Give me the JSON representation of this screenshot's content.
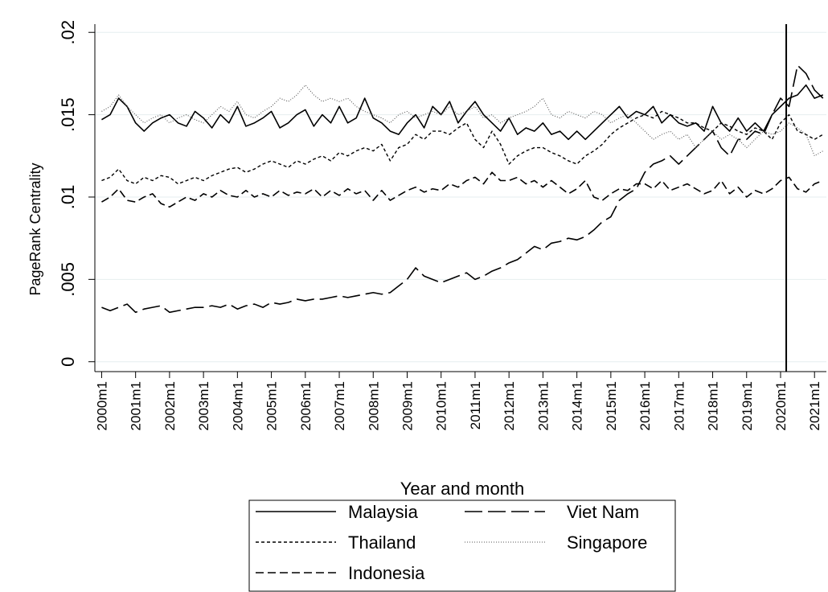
{
  "chart_data": {
    "type": "line",
    "y_label": "PageRank Centrality",
    "x_label": "Year and month",
    "ylim": [
      -0.0006,
      0.0205
    ],
    "yticks": [
      0,
      {
        "value": 0.005,
        "label": ".005"
      },
      {
        "value": 0.01,
        "label": ".01"
      },
      {
        "value": 0.015,
        "label": ".015"
      },
      {
        "value": 0.02,
        "label": ".02"
      }
    ],
    "xlim": [
      1999.8,
      2021.35
    ],
    "xticks": [
      {
        "value": 2000,
        "label": "2000m1"
      },
      {
        "value": 2001,
        "label": "2001m1"
      },
      {
        "value": 2002,
        "label": "2002m1"
      },
      {
        "value": 2003,
        "label": "2003m1"
      },
      {
        "value": 2004,
        "label": "2004m1"
      },
      {
        "value": 2005,
        "label": "2005m1"
      },
      {
        "value": 2006,
        "label": "2006m1"
      },
      {
        "value": 2007,
        "label": "2007m1"
      },
      {
        "value": 2008,
        "label": "2008m1"
      },
      {
        "value": 2009,
        "label": "2009m1"
      },
      {
        "value": 2010,
        "label": "2010m1"
      },
      {
        "value": 2011,
        "label": "2011m1"
      },
      {
        "value": 2012,
        "label": "2012m1"
      },
      {
        "value": 2013,
        "label": "2013m1"
      },
      {
        "value": 2014,
        "label": "2014m1"
      },
      {
        "value": 2015,
        "label": "2015m1"
      },
      {
        "value": 2016,
        "label": "2016m1"
      },
      {
        "value": 2017,
        "label": "2017m1"
      },
      {
        "value": 2018,
        "label": "2018m1"
      },
      {
        "value": 2019,
        "label": "2019m1"
      },
      {
        "value": 2020,
        "label": "2020m1"
      },
      {
        "value": 2021,
        "label": "2021m1"
      }
    ],
    "grid": true,
    "xline": 2020.167,
    "x": [
      2000,
      2000.25,
      2000.5,
      2000.75,
      2001,
      2001.25,
      2001.5,
      2001.75,
      2002,
      2002.25,
      2002.5,
      2002.75,
      2003,
      2003.25,
      2003.5,
      2003.75,
      2004,
      2004.25,
      2004.5,
      2004.75,
      2005,
      2005.25,
      2005.5,
      2005.75,
      2006,
      2006.25,
      2006.5,
      2006.75,
      2007,
      2007.25,
      2007.5,
      2007.75,
      2008,
      2008.25,
      2008.5,
      2008.75,
      2009,
      2009.25,
      2009.5,
      2009.75,
      2010,
      2010.25,
      2010.5,
      2010.75,
      2011,
      2011.25,
      2011.5,
      2011.75,
      2012,
      2012.25,
      2012.5,
      2012.75,
      2013,
      2013.25,
      2013.5,
      2013.75,
      2014,
      2014.25,
      2014.5,
      2014.75,
      2015,
      2015.25,
      2015.5,
      2015.75,
      2016,
      2016.25,
      2016.5,
      2016.75,
      2017,
      2017.25,
      2017.5,
      2017.75,
      2018,
      2018.25,
      2018.5,
      2018.75,
      2019,
      2019.25,
      2019.5,
      2019.75,
      2020,
      2020.25,
      2020.5,
      2020.75,
      2021,
      2021.25
    ],
    "series": [
      {
        "name": "Malaysia",
        "color": "#000000",
        "dash": "solid",
        "values": [
          0.0147,
          0.015,
          0.016,
          0.0155,
          0.0145,
          0.014,
          0.0145,
          0.0148,
          0.015,
          0.0145,
          0.0143,
          0.0152,
          0.0148,
          0.0142,
          0.015,
          0.0145,
          0.0155,
          0.0143,
          0.0145,
          0.0148,
          0.0152,
          0.0142,
          0.0145,
          0.015,
          0.0153,
          0.0143,
          0.015,
          0.0145,
          0.0155,
          0.0145,
          0.0148,
          0.016,
          0.0148,
          0.0145,
          0.014,
          0.0138,
          0.0145,
          0.015,
          0.0142,
          0.0155,
          0.015,
          0.0158,
          0.0145,
          0.0152,
          0.0158,
          0.015,
          0.0145,
          0.014,
          0.0148,
          0.0138,
          0.0142,
          0.014,
          0.0145,
          0.0138,
          0.014,
          0.0135,
          0.014,
          0.0135,
          0.014,
          0.0145,
          0.015,
          0.0155,
          0.0148,
          0.0152,
          0.015,
          0.0155,
          0.0145,
          0.015,
          0.0145,
          0.0143,
          0.0145,
          0.014,
          0.0155,
          0.0145,
          0.014,
          0.0148,
          0.014,
          0.0145,
          0.014,
          0.015,
          0.0155,
          0.016,
          0.0162,
          0.0168,
          0.016,
          0.0162
        ]
      },
      {
        "name": "Viet Nam",
        "color": "#000000",
        "dash": "long",
        "values": [
          0.0033,
          0.0031,
          0.0033,
          0.0035,
          0.003,
          0.0032,
          0.0033,
          0.0034,
          0.003,
          0.0031,
          0.0032,
          0.0033,
          0.0033,
          0.0034,
          0.0033,
          0.0035,
          0.0032,
          0.0034,
          0.0035,
          0.0033,
          0.0036,
          0.0035,
          0.0036,
          0.0038,
          0.0037,
          0.0038,
          0.0038,
          0.0039,
          0.004,
          0.0039,
          0.004,
          0.0041,
          0.0042,
          0.0041,
          0.0042,
          0.0046,
          0.005,
          0.0057,
          0.0052,
          0.005,
          0.0048,
          0.005,
          0.0052,
          0.0054,
          0.005,
          0.0052,
          0.0055,
          0.0057,
          0.006,
          0.0062,
          0.0066,
          0.007,
          0.0068,
          0.0072,
          0.0073,
          0.0075,
          0.0074,
          0.0076,
          0.008,
          0.0085,
          0.0088,
          0.0098,
          0.0102,
          0.0105,
          0.0115,
          0.012,
          0.0122,
          0.0125,
          0.012,
          0.0125,
          0.013,
          0.0135,
          0.014,
          0.013,
          0.0125,
          0.0135,
          0.0135,
          0.014,
          0.0138,
          0.015,
          0.016,
          0.0155,
          0.018,
          0.0175,
          0.0165,
          0.016
        ]
      },
      {
        "name": "Thailand",
        "color": "#000000",
        "dash": "short",
        "values": [
          0.011,
          0.0112,
          0.0117,
          0.011,
          0.0108,
          0.0112,
          0.011,
          0.0113,
          0.0112,
          0.0108,
          0.011,
          0.0112,
          0.011,
          0.0113,
          0.0115,
          0.0117,
          0.0118,
          0.0115,
          0.0117,
          0.012,
          0.0122,
          0.012,
          0.0118,
          0.0122,
          0.012,
          0.0123,
          0.0125,
          0.0122,
          0.0127,
          0.0125,
          0.0128,
          0.013,
          0.0128,
          0.0132,
          0.0122,
          0.013,
          0.0132,
          0.0138,
          0.0135,
          0.014,
          0.014,
          0.0138,
          0.0142,
          0.0145,
          0.0135,
          0.013,
          0.014,
          0.0132,
          0.012,
          0.0125,
          0.0128,
          0.013,
          0.013,
          0.0127,
          0.0125,
          0.0122,
          0.012,
          0.0125,
          0.0128,
          0.0132,
          0.0138,
          0.0142,
          0.0145,
          0.0148,
          0.015,
          0.0148,
          0.0152,
          0.015,
          0.0148,
          0.0145,
          0.0145,
          0.0142,
          0.014,
          0.0145,
          0.0143,
          0.014,
          0.0138,
          0.0142,
          0.014,
          0.0135,
          0.0145,
          0.015,
          0.014,
          0.0138,
          0.0135,
          0.0138
        ]
      },
      {
        "name": "Singapore",
        "color": "#555555",
        "dash": "dot",
        "values": [
          0.0152,
          0.0155,
          0.0162,
          0.0155,
          0.015,
          0.0145,
          0.0148,
          0.015,
          0.0145,
          0.0148,
          0.015,
          0.0147,
          0.0145,
          0.015,
          0.0155,
          0.0152,
          0.0158,
          0.015,
          0.0148,
          0.0152,
          0.0155,
          0.016,
          0.0158,
          0.0162,
          0.0168,
          0.0162,
          0.0158,
          0.016,
          0.0158,
          0.016,
          0.0155,
          0.0152,
          0.015,
          0.0148,
          0.0145,
          0.015,
          0.0152,
          0.0148,
          0.015,
          0.0152,
          0.015,
          0.0155,
          0.015,
          0.0152,
          0.0155,
          0.0148,
          0.015,
          0.0145,
          0.0148,
          0.015,
          0.0152,
          0.0155,
          0.016,
          0.015,
          0.0148,
          0.0152,
          0.015,
          0.0148,
          0.0152,
          0.015,
          0.0145,
          0.0148,
          0.015,
          0.0145,
          0.014,
          0.0135,
          0.0138,
          0.014,
          0.0135,
          0.0138,
          0.013,
          0.0135,
          0.014,
          0.0135,
          0.0138,
          0.0135,
          0.013,
          0.0135,
          0.014,
          0.0138,
          0.014,
          0.0145,
          0.0142,
          0.0138,
          0.0125,
          0.0128
        ]
      },
      {
        "name": "Indonesia",
        "color": "#000000",
        "dash": "medium",
        "values": [
          0.0097,
          0.01,
          0.0105,
          0.0098,
          0.0097,
          0.01,
          0.0102,
          0.0096,
          0.0094,
          0.0097,
          0.01,
          0.0098,
          0.0102,
          0.01,
          0.0104,
          0.0101,
          0.01,
          0.0104,
          0.01,
          0.0102,
          0.01,
          0.0104,
          0.0101,
          0.0103,
          0.0102,
          0.0105,
          0.01,
          0.0104,
          0.0101,
          0.0105,
          0.0102,
          0.0104,
          0.0098,
          0.0104,
          0.0098,
          0.0101,
          0.0104,
          0.0106,
          0.0103,
          0.0105,
          0.0104,
          0.0108,
          0.0106,
          0.011,
          0.0112,
          0.0108,
          0.0115,
          0.011,
          0.011,
          0.0112,
          0.0108,
          0.011,
          0.0106,
          0.011,
          0.0106,
          0.0102,
          0.0105,
          0.011,
          0.01,
          0.0098,
          0.0102,
          0.0105,
          0.0104,
          0.0108,
          0.0108,
          0.0105,
          0.011,
          0.0104,
          0.0106,
          0.0108,
          0.0105,
          0.0102,
          0.0104,
          0.011,
          0.0102,
          0.0106,
          0.01,
          0.0104,
          0.0102,
          0.0105,
          0.011,
          0.0112,
          0.0105,
          0.0103,
          0.0108,
          0.011
        ]
      }
    ]
  }
}
